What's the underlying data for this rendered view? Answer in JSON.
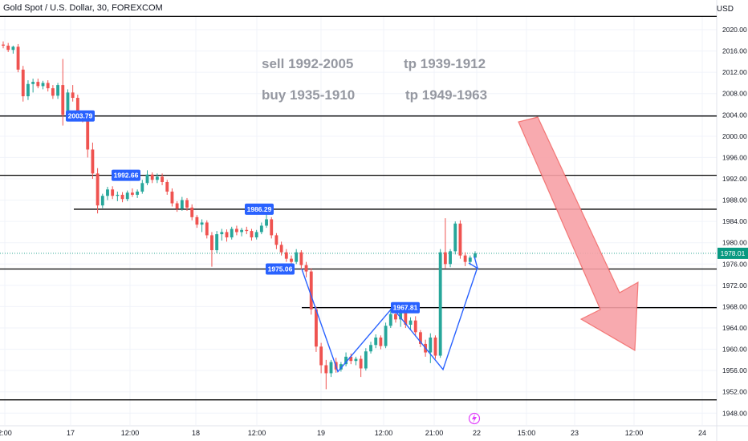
{
  "header": {
    "title": "Gold Spot / U.S. Dollar, 30, FOREXCOM",
    "currency": "USD"
  },
  "chart_data": {
    "type": "candlestick",
    "symbol": "Gold Spot / U.S. Dollar",
    "interval": "30",
    "exchange": "FOREXCOM",
    "currency": "USD",
    "current_price": "1978.01",
    "ylim": [
      1946,
      2024
    ],
    "y_ticks": [
      "2020.00",
      "2016.00",
      "2012.00",
      "2008.00",
      "2004.00",
      "2000.00",
      "1996.00",
      "1992.00",
      "1988.00",
      "1984.00",
      "1980.00",
      "1976.00",
      "1972.00",
      "1968.00",
      "1964.00",
      "1960.00",
      "1956.00",
      "1952.00",
      "1948.00"
    ],
    "x_ticks": [
      "2:00",
      "17",
      "12:00",
      "18",
      "12:00",
      "19",
      "12:00",
      "21:00",
      "22",
      "15:00",
      "23",
      "12:00",
      "24"
    ],
    "annotations": [
      {
        "text": "sell  1992-2005",
        "color": "#9598a1"
      },
      {
        "text": "tp 1939-1912",
        "color": "#9598a1"
      },
      {
        "text": "buy 1935-1910",
        "color": "#9598a1"
      },
      {
        "text": "tp 1949-1963",
        "color": "#9598a1"
      }
    ],
    "levels": [
      2022.5,
      2003.79,
      1992.66,
      1986.29,
      1975.06,
      1967.81,
      1950.5
    ],
    "level_labels": [
      "2003.79",
      "1992.66",
      "1986.29",
      "1975.06",
      "1967.81"
    ],
    "colors": {
      "up": "#26a69a",
      "down": "#ef5350",
      "line": "#000000",
      "label_bg": "#2962ff",
      "pattern": "#2962ff",
      "arrow_fill": "#f7a1a6",
      "arrow_stroke": "#ef5350",
      "grid": "#f0f3fa",
      "price_tag": "#089981"
    },
    "candles": [
      [
        2017.2,
        2017.8,
        2016.5,
        2017.0
      ],
      [
        2017.0,
        2017.5,
        2015.8,
        2016.2
      ],
      [
        2016.2,
        2017.0,
        2015.5,
        2016.8
      ],
      [
        2016.8,
        2017.3,
        2012.0,
        2012.5
      ],
      [
        2012.5,
        2013.2,
        2006.5,
        2007.5
      ],
      [
        2007.5,
        2010.5,
        2006.8,
        2009.8
      ],
      [
        2009.8,
        2010.8,
        2008.2,
        2010.2
      ],
      [
        2010.2,
        2010.8,
        2009.0,
        2009.4
      ],
      [
        2009.4,
        2010.4,
        2008.8,
        2010.0
      ],
      [
        2010.0,
        2010.5,
        2008.4,
        2009.0
      ],
      [
        2009.0,
        2009.6,
        2007.0,
        2007.6
      ],
      [
        2007.6,
        2010.0,
        2007.0,
        2009.6
      ],
      [
        2009.6,
        2014.5,
        2002.0,
        2004.0
      ],
      [
        2004.0,
        2008.8,
        2003.6,
        2008.2
      ],
      [
        2008.2,
        2009.6,
        2006.5,
        2007.2
      ],
      [
        2007.2,
        2007.8,
        2003.5,
        2004.2
      ],
      [
        2004.2,
        2004.8,
        2002.6,
        2003.2
      ],
      [
        2003.2,
        2003.8,
        1996.0,
        1997.5
      ],
      [
        1997.5,
        1998.8,
        1992.0,
        1993.0
      ],
      [
        1993.0,
        1994.0,
        1985.5,
        1987.0
      ],
      [
        1987.0,
        1989.2,
        1986.5,
        1988.8
      ],
      [
        1988.8,
        1990.5,
        1988.0,
        1990.0
      ],
      [
        1990.0,
        1990.6,
        1988.2,
        1988.8
      ],
      [
        1988.8,
        1989.6,
        1987.8,
        1989.0
      ],
      [
        1989.0,
        1989.5,
        1987.6,
        1988.2
      ],
      [
        1988.2,
        1989.8,
        1987.8,
        1989.4
      ],
      [
        1989.4,
        1990.2,
        1988.6,
        1989.0
      ],
      [
        1989.0,
        1990.0,
        1988.4,
        1989.6
      ],
      [
        1989.6,
        1991.8,
        1989.2,
        1991.2
      ],
      [
        1991.2,
        1993.6,
        1990.8,
        1992.8
      ],
      [
        1992.8,
        1993.2,
        1991.2,
        1991.8
      ],
      [
        1991.8,
        1993.0,
        1991.2,
        1992.4
      ],
      [
        1992.4,
        1993.0,
        1990.8,
        1991.4
      ],
      [
        1991.4,
        1991.8,
        1989.0,
        1989.6
      ],
      [
        1989.6,
        1990.2,
        1986.8,
        1987.4
      ],
      [
        1987.4,
        1987.8,
        1985.8,
        1986.4
      ],
      [
        1986.4,
        1988.6,
        1986.0,
        1988.0
      ],
      [
        1988.0,
        1988.4,
        1986.0,
        1986.6
      ],
      [
        1986.6,
        1987.2,
        1984.2,
        1984.8
      ],
      [
        1984.8,
        1985.2,
        1982.8,
        1983.4
      ],
      [
        1983.4,
        1984.4,
        1982.0,
        1983.8
      ],
      [
        1983.8,
        1984.2,
        1980.8,
        1981.4
      ],
      [
        1981.4,
        1982.0,
        1975.5,
        1978.6
      ],
      [
        1978.6,
        1982.2,
        1978.0,
        1981.6
      ],
      [
        1981.6,
        1982.6,
        1980.4,
        1982.0
      ],
      [
        1982.0,
        1982.5,
        1980.2,
        1981.0
      ],
      [
        1981.0,
        1983.0,
        1980.6,
        1982.6
      ],
      [
        1982.6,
        1983.2,
        1981.4,
        1982.0
      ],
      [
        1982.0,
        1982.8,
        1981.2,
        1982.4
      ],
      [
        1982.4,
        1983.0,
        1981.6,
        1982.2
      ],
      [
        1982.2,
        1982.6,
        1980.4,
        1981.0
      ],
      [
        1981.0,
        1982.4,
        1980.6,
        1982.0
      ],
      [
        1982.0,
        1983.8,
        1981.6,
        1983.2
      ],
      [
        1983.2,
        1986.8,
        1982.8,
        1984.4
      ],
      [
        1984.4,
        1984.8,
        1980.8,
        1981.4
      ],
      [
        1981.4,
        1981.8,
        1978.8,
        1979.6
      ],
      [
        1979.6,
        1980.2,
        1977.6,
        1978.2
      ],
      [
        1978.2,
        1978.8,
        1976.4,
        1977.0
      ],
      [
        1977.0,
        1977.6,
        1975.2,
        1976.4
      ],
      [
        1976.4,
        1978.8,
        1976.0,
        1978.2
      ],
      [
        1978.2,
        1978.6,
        1975.0,
        1975.8
      ],
      [
        1975.8,
        1976.4,
        1973.5,
        1974.6
      ],
      [
        1974.6,
        1975.2,
        1966.5,
        1967.5
      ],
      [
        1967.5,
        1968.0,
        1959.5,
        1960.5
      ],
      [
        1960.5,
        1961.2,
        1955.5,
        1957.0
      ],
      [
        1957.0,
        1958.0,
        1952.5,
        1955.5
      ],
      [
        1955.5,
        1958.0,
        1954.8,
        1957.6
      ],
      [
        1957.6,
        1958.4,
        1955.6,
        1956.2
      ],
      [
        1956.2,
        1957.6,
        1955.8,
        1957.2
      ],
      [
        1957.2,
        1959.4,
        1956.8,
        1958.6
      ],
      [
        1958.6,
        1959.2,
        1957.2,
        1957.8
      ],
      [
        1957.8,
        1958.6,
        1957.0,
        1958.2
      ],
      [
        1958.2,
        1958.8,
        1954.8,
        1956.4
      ],
      [
        1956.4,
        1960.2,
        1956.0,
        1959.6
      ],
      [
        1959.6,
        1961.4,
        1959.2,
        1960.8
      ],
      [
        1960.8,
        1962.8,
        1960.2,
        1962.2
      ],
      [
        1962.2,
        1962.6,
        1960.0,
        1960.6
      ],
      [
        1960.6,
        1965.0,
        1960.2,
        1964.4
      ],
      [
        1964.4,
        1967.6,
        1964.0,
        1966.6
      ],
      [
        1966.6,
        1968.0,
        1965.0,
        1965.6
      ],
      [
        1965.6,
        1967.2,
        1964.2,
        1966.8
      ],
      [
        1966.8,
        1967.4,
        1964.0,
        1964.6
      ],
      [
        1964.6,
        1966.0,
        1963.6,
        1965.4
      ],
      [
        1965.4,
        1966.2,
        1962.4,
        1963.2
      ],
      [
        1963.2,
        1963.6,
        1960.4,
        1961.0
      ],
      [
        1961.0,
        1961.8,
        1958.6,
        1959.4
      ],
      [
        1959.4,
        1963.0,
        1957.4,
        1962.2
      ],
      [
        1962.2,
        1962.6,
        1958.2,
        1958.8
      ],
      [
        1958.8,
        1978.8,
        1958.4,
        1978.2
      ],
      [
        1978.2,
        1984.6,
        1975.2,
        1976.0
      ],
      [
        1976.0,
        1978.8,
        1975.4,
        1978.4
      ],
      [
        1978.4,
        1984.0,
        1977.8,
        1983.6
      ],
      [
        1983.6,
        1984.2,
        1977.0,
        1977.6
      ],
      [
        1977.6,
        1978.2,
        1975.6,
        1976.4
      ],
      [
        1976.4,
        1977.6,
        1975.8,
        1977.2
      ],
      [
        1977.2,
        1978.4,
        1976.8,
        1978.01
      ]
    ]
  }
}
